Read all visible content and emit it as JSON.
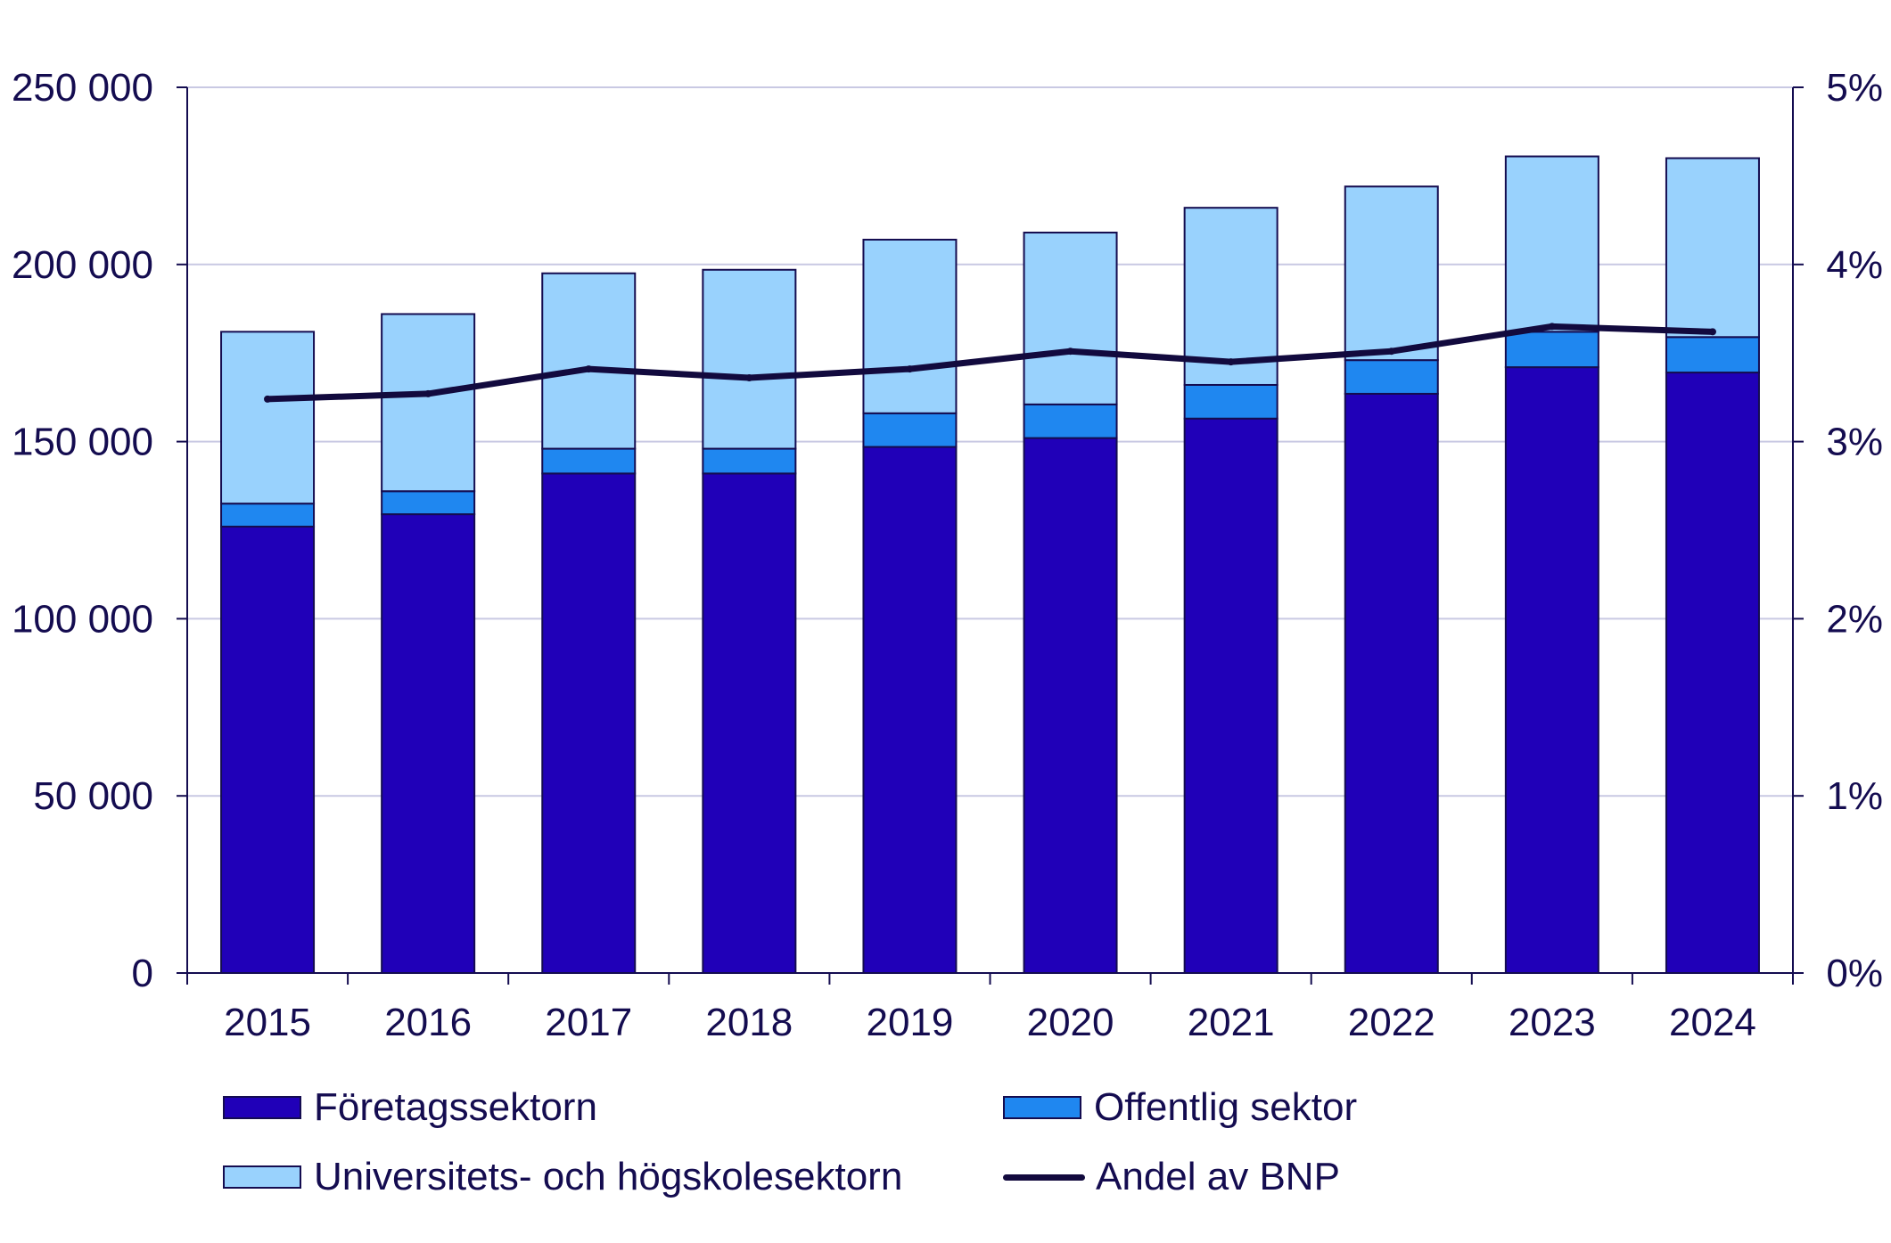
{
  "chart_data": {
    "type": "bar",
    "stacked": true,
    "categories": [
      "2015",
      "2016",
      "2017",
      "2018",
      "2019",
      "2020",
      "2021",
      "2022",
      "2023",
      "2024"
    ],
    "series": [
      {
        "name": "Företagssektorn",
        "color": "#2000b8",
        "values": [
          126000,
          129500,
          141000,
          141000,
          148500,
          151000,
          156500,
          163500,
          171000,
          169500
        ]
      },
      {
        "name": "Offentlig sektor",
        "color": "#1f87f0",
        "values": [
          6500,
          6500,
          7000,
          7000,
          9500,
          9500,
          9500,
          9500,
          10000,
          10000
        ]
      },
      {
        "name": "Universitets- och högskolesektorn",
        "color": "#99d2fd",
        "values": [
          48500,
          50000,
          49500,
          50500,
          49000,
          48500,
          50000,
          49000,
          49500,
          50500
        ]
      }
    ],
    "line_series": {
      "name": "Andel av BNP",
      "color": "#120a3e",
      "axis": "right",
      "values": [
        3.24,
        3.27,
        3.41,
        3.36,
        3.41,
        3.51,
        3.45,
        3.51,
        3.65,
        3.62
      ]
    },
    "ylim": [
      0,
      250000
    ],
    "yticks": [
      "0",
      "50 000",
      "100 000",
      "150 000",
      "200 000",
      "250 000"
    ],
    "y2lim": [
      0,
      5
    ],
    "y2ticks": [
      "0%",
      "1%",
      "2%",
      "3%",
      "4%",
      "5%"
    ],
    "grid": true,
    "legend_position": "bottom"
  },
  "legend": {
    "items": [
      {
        "label": "Företagssektorn",
        "kind": "box",
        "color": "#2000b8"
      },
      {
        "label": "Offentlig sektor",
        "kind": "box",
        "color": "#1f87f0"
      },
      {
        "label": "Universitets- och högskolesektorn",
        "kind": "box",
        "color": "#99d2fd"
      },
      {
        "label": "Andel av BNP",
        "kind": "line",
        "color": "#120a3e"
      }
    ]
  }
}
